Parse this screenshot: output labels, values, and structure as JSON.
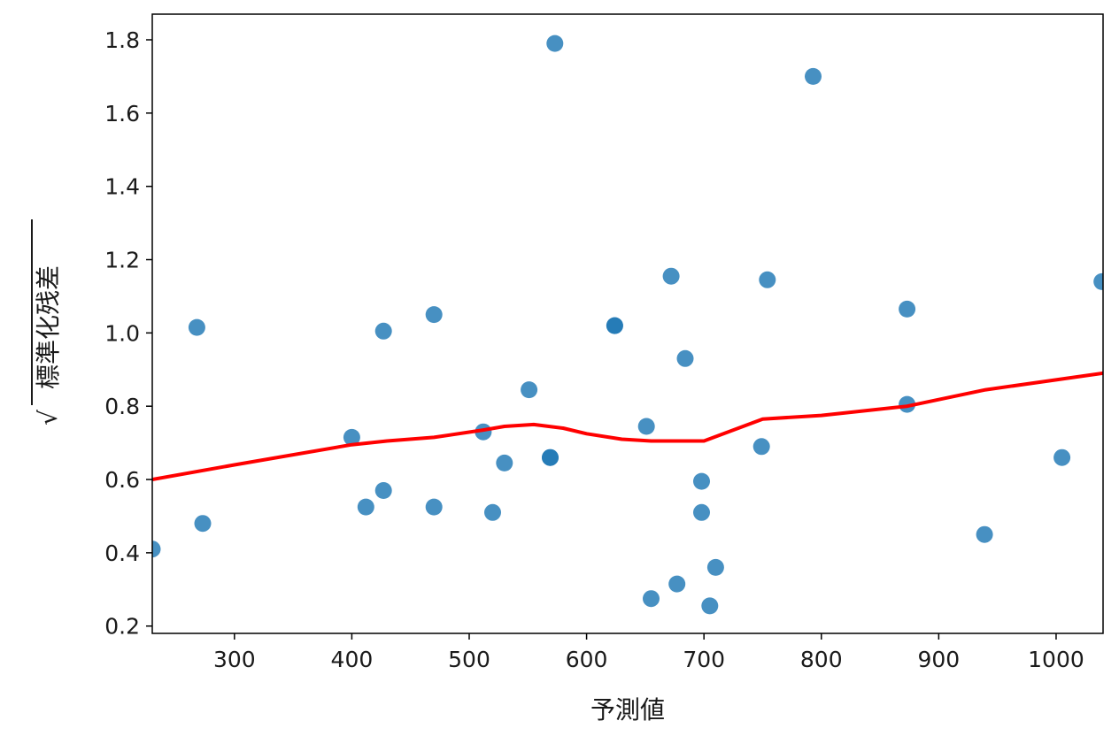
{
  "chart_data": {
    "type": "scatter",
    "xlabel": "予測値",
    "ylabel": "標準化残差",
    "ylabel_radical": "√",
    "xlim": [
      230,
      1040
    ],
    "ylim": [
      0.18,
      1.87
    ],
    "xticks": [
      300,
      400,
      500,
      600,
      700,
      800,
      900,
      1000
    ],
    "yticks": [
      0.2,
      0.4,
      0.6,
      0.8,
      1.0,
      1.2,
      1.4,
      1.6,
      1.8
    ],
    "grid": false,
    "colors": {
      "points": "#1f77b4",
      "lowess": "#ff0000",
      "axes": "#000000"
    },
    "series": [
      {
        "kind": "points",
        "x": [
          230,
          268,
          273,
          400,
          412,
          427,
          427,
          470,
          470,
          512,
          520,
          530,
          551,
          569,
          569,
          573,
          624,
          624,
          651,
          655,
          672,
          677,
          684,
          698,
          698,
          705,
          710,
          749,
          754,
          793,
          873,
          873,
          939,
          1005,
          1039
        ],
        "y": [
          0.41,
          1.015,
          0.48,
          0.715,
          0.525,
          1.005,
          0.57,
          1.05,
          0.525,
          0.73,
          0.51,
          0.645,
          0.845,
          0.66,
          0.66,
          1.79,
          1.02,
          1.02,
          0.745,
          0.275,
          1.155,
          0.315,
          0.93,
          0.595,
          0.51,
          0.255,
          0.36,
          0.69,
          1.145,
          1.7,
          1.065,
          0.805,
          0.45,
          0.66,
          1.14
        ]
      },
      {
        "kind": "lowess",
        "x": [
          230,
          300,
          400,
          430,
          470,
          512,
          530,
          555,
          580,
          600,
          630,
          655,
          700,
          750,
          800,
          873,
          940,
          1040
        ],
        "y": [
          0.6,
          0.64,
          0.695,
          0.705,
          0.715,
          0.735,
          0.745,
          0.75,
          0.74,
          0.725,
          0.71,
          0.705,
          0.705,
          0.765,
          0.775,
          0.8,
          0.845,
          0.89
        ]
      }
    ]
  }
}
